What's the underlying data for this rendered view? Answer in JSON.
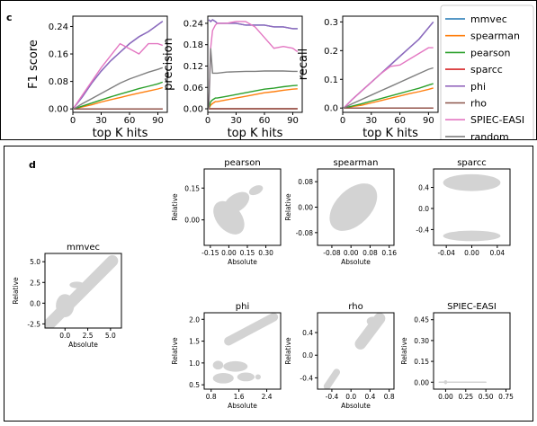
{
  "panels": {
    "c": {
      "letter": "c"
    },
    "d": {
      "letter": "d"
    }
  },
  "colors": {
    "mmvec": "#1f77b4",
    "spearman": "#ff7f0e",
    "pearson": "#2ca02c",
    "sparcc": "#d62728",
    "phi": "#9467bd",
    "rho": "#8c564b",
    "SPIEC-EASI": "#e377c2",
    "random": "#7f7f7f",
    "scatter": "#d3d3d3"
  },
  "chart_data": [
    {
      "id": "f1",
      "type": "line",
      "ylabel": "F1 score",
      "xlabel": "top K hits",
      "xlim": [
        0,
        100
      ],
      "ylim": [
        -0.01,
        0.27
      ],
      "xticks": [
        0,
        30,
        60,
        90
      ],
      "yticks": [
        0.0,
        0.08,
        0.16,
        0.24
      ],
      "ytick_labels": [
        "0.00",
        "0.08",
        "0.16",
        "0.24"
      ],
      "x": [
        1,
        10,
        20,
        30,
        40,
        50,
        60,
        70,
        80,
        90,
        95
      ],
      "series": [
        {
          "name": "mmvec",
          "values": [
            0.003,
            0.035,
            0.075,
            0.11,
            0.14,
            0.165,
            0.19,
            0.21,
            0.225,
            0.245,
            0.255
          ]
        },
        {
          "name": "spearman",
          "values": [
            0.0,
            0.006,
            0.012,
            0.02,
            0.027,
            0.033,
            0.04,
            0.046,
            0.052,
            0.058,
            0.062
          ]
        },
        {
          "name": "pearson",
          "values": [
            0.0,
            0.008,
            0.017,
            0.026,
            0.035,
            0.043,
            0.051,
            0.059,
            0.066,
            0.073,
            0.078
          ]
        },
        {
          "name": "sparcc",
          "values": [
            0.0,
            0.0,
            0.0,
            0.0,
            0.0,
            0.0,
            0.0,
            0.0,
            0.0,
            0.0,
            0.0
          ]
        },
        {
          "name": "phi",
          "values": [
            0.003,
            0.035,
            0.075,
            0.11,
            0.14,
            0.165,
            0.19,
            0.21,
            0.225,
            0.245,
            0.255
          ]
        },
        {
          "name": "rho",
          "values": [
            0.0,
            0.0,
            0.0,
            0.0,
            0.0,
            0.0,
            0.0,
            0.0,
            0.0,
            0.0,
            0.0
          ]
        },
        {
          "name": "SPIEC-EASI",
          "values": [
            0.003,
            0.04,
            0.08,
            0.12,
            0.155,
            0.19,
            0.175,
            0.16,
            0.19,
            0.19,
            0.185
          ]
        },
        {
          "name": "random",
          "values": [
            0.0,
            0.015,
            0.03,
            0.045,
            0.06,
            0.075,
            0.087,
            0.097,
            0.107,
            0.115,
            0.12
          ]
        }
      ]
    },
    {
      "id": "precision",
      "type": "line",
      "ylabel": "precision",
      "xlabel": "top K hits",
      "xlim": [
        0,
        100
      ],
      "ylim": [
        -0.01,
        0.26
      ],
      "xticks": [
        0,
        30,
        60,
        90
      ],
      "yticks": [
        0.0,
        0.06,
        0.12,
        0.18,
        0.24
      ],
      "ytick_labels": [
        "0.00",
        "0.06",
        "0.12",
        "0.18",
        "0.24"
      ],
      "x": [
        1,
        3,
        5,
        8,
        10,
        20,
        30,
        40,
        50,
        60,
        70,
        80,
        90,
        95
      ],
      "series": [
        {
          "name": "mmvec",
          "values": [
            0.25,
            0.245,
            0.25,
            0.245,
            0.24,
            0.24,
            0.24,
            0.235,
            0.235,
            0.235,
            0.23,
            0.23,
            0.225,
            0.225
          ]
        },
        {
          "name": "spearman",
          "values": [
            0.0,
            0.01,
            0.015,
            0.02,
            0.02,
            0.025,
            0.03,
            0.035,
            0.04,
            0.045,
            0.048,
            0.052,
            0.055,
            0.056
          ]
        },
        {
          "name": "pearson",
          "values": [
            0.0,
            0.02,
            0.025,
            0.03,
            0.03,
            0.035,
            0.04,
            0.045,
            0.05,
            0.055,
            0.058,
            0.062,
            0.065,
            0.066
          ]
        },
        {
          "name": "sparcc",
          "values": [
            0.0,
            0.0,
            0.0,
            0.0,
            0.0,
            0.0,
            0.0,
            0.0,
            0.0,
            0.0,
            0.0,
            0.0,
            0.0,
            0.0
          ]
        },
        {
          "name": "phi",
          "values": [
            0.25,
            0.245,
            0.25,
            0.245,
            0.24,
            0.24,
            0.24,
            0.235,
            0.235,
            0.235,
            0.23,
            0.23,
            0.225,
            0.225
          ]
        },
        {
          "name": "rho",
          "values": [
            0.0,
            0.0,
            0.0,
            0.0,
            0.0,
            0.0,
            0.0,
            0.0,
            0.0,
            0.0,
            0.0,
            0.0,
            0.0,
            0.0
          ]
        },
        {
          "name": "SPIEC-EASI",
          "values": [
            0.0,
            0.17,
            0.22,
            0.235,
            0.24,
            0.24,
            0.245,
            0.245,
            0.23,
            0.2,
            0.17,
            0.175,
            0.17,
            0.16
          ]
        },
        {
          "name": "random",
          "values": [
            0.0,
            0.17,
            0.1,
            0.1,
            0.1,
            0.103,
            0.104,
            0.105,
            0.105,
            0.106,
            0.106,
            0.106,
            0.105,
            0.105
          ]
        }
      ]
    },
    {
      "id": "recall",
      "type": "line",
      "ylabel": "recall",
      "xlabel": "top K hits",
      "xlim": [
        0,
        100
      ],
      "ylim": [
        -0.015,
        0.32
      ],
      "xticks": [
        0,
        30,
        60,
        90
      ],
      "yticks": [
        0.0,
        0.1,
        0.2,
        0.3
      ],
      "ytick_labels": [
        "0.0",
        "0.1",
        "0.2",
        "0.3"
      ],
      "x": [
        1,
        10,
        20,
        30,
        40,
        50,
        60,
        70,
        80,
        90,
        95
      ],
      "series": [
        {
          "name": "mmvec",
          "values": [
            0.0,
            0.03,
            0.06,
            0.09,
            0.12,
            0.15,
            0.18,
            0.21,
            0.24,
            0.28,
            0.3
          ]
        },
        {
          "name": "spearman",
          "values": [
            0.0,
            0.005,
            0.01,
            0.018,
            0.026,
            0.034,
            0.042,
            0.05,
            0.057,
            0.065,
            0.07
          ]
        },
        {
          "name": "pearson",
          "values": [
            0.0,
            0.007,
            0.015,
            0.024,
            0.033,
            0.042,
            0.051,
            0.06,
            0.069,
            0.08,
            0.085
          ]
        },
        {
          "name": "sparcc",
          "values": [
            0.0,
            0.0,
            0.0,
            0.0,
            0.0,
            0.0,
            0.0,
            0.0,
            0.0,
            0.0,
            0.0
          ]
        },
        {
          "name": "phi",
          "values": [
            0.0,
            0.03,
            0.06,
            0.09,
            0.12,
            0.15,
            0.18,
            0.21,
            0.24,
            0.28,
            0.3
          ]
        },
        {
          "name": "rho",
          "values": [
            0.0,
            0.0,
            0.0,
            0.0,
            0.0,
            0.0,
            0.0,
            0.0,
            0.0,
            0.0,
            0.0
          ]
        },
        {
          "name": "SPIEC-EASI",
          "values": [
            0.0,
            0.03,
            0.06,
            0.09,
            0.12,
            0.145,
            0.15,
            0.17,
            0.19,
            0.21,
            0.21
          ]
        },
        {
          "name": "random",
          "values": [
            0.0,
            0.015,
            0.03,
            0.045,
            0.06,
            0.075,
            0.09,
            0.105,
            0.12,
            0.135,
            0.14
          ]
        }
      ]
    },
    {
      "id": "mmvec-scatter",
      "type": "scatter",
      "title": "mmvec",
      "xlabel": "Absolute",
      "ylabel": "Relative",
      "xlim": [
        -2.2,
        6.2
      ],
      "ylim": [
        -3.0,
        6.0
      ],
      "xticks": [
        0.0,
        2.5,
        5.0
      ],
      "xtick_labels": [
        "0.0",
        "2.5",
        "5.0"
      ],
      "yticks": [
        -2.5,
        0.0,
        2.5,
        5.0
      ],
      "ytick_labels": [
        "-2.5",
        "0.0",
        "2.5",
        "5.0"
      ],
      "clusters": [
        {
          "shape": "band",
          "from": [
            -1.8,
            -2.6
          ],
          "to": [
            5.2,
            5.1
          ],
          "width": 0.7
        },
        {
          "shape": "ellipse",
          "cx": 0.0,
          "cy": -0.3,
          "rx": 1.0,
          "ry": 1.4
        },
        {
          "shape": "ellipse",
          "cx": 1.3,
          "cy": 2.2,
          "rx": 0.8,
          "ry": 0.4
        },
        {
          "shape": "ellipse",
          "cx": 2.6,
          "cy": 2.4,
          "rx": 0.6,
          "ry": 0.3
        },
        {
          "shape": "ellipse",
          "cx": 5.0,
          "cy": 5.0,
          "rx": 0.4,
          "ry": 0.5
        }
      ]
    },
    {
      "id": "pearson-scatter",
      "type": "scatter",
      "title": "pearson",
      "xlabel": "Absolute",
      "ylabel": "Relative",
      "xlim": [
        -0.2,
        0.42
      ],
      "ylim": [
        -0.12,
        0.24
      ],
      "xticks": [
        -0.15,
        0.0,
        0.15,
        0.3
      ],
      "xtick_labels": [
        "-0.15",
        "0.00",
        "0.15",
        "0.30"
      ],
      "yticks": [
        0.0,
        0.15
      ],
      "ytick_labels": [
        "0.00",
        "0.15"
      ],
      "clusters": [
        {
          "shape": "ellipse",
          "cx": 0.0,
          "cy": 0.01,
          "rx": 0.1,
          "ry": 0.09,
          "rot": -40
        },
        {
          "shape": "ellipse",
          "cx": 0.06,
          "cy": 0.08,
          "rx": 0.12,
          "ry": 0.04,
          "rot": -35
        },
        {
          "shape": "ellipse",
          "cx": 0.22,
          "cy": 0.14,
          "rx": 0.06,
          "ry": 0.02,
          "rot": -25
        }
      ]
    },
    {
      "id": "spearman-scatter",
      "type": "scatter",
      "title": "spearman",
      "xlabel": "Absolute",
      "ylabel": "Relative",
      "xlim": [
        -0.14,
        0.18
      ],
      "ylim": [
        -0.12,
        0.12
      ],
      "xticks": [
        -0.08,
        0.0,
        0.08,
        0.16
      ],
      "xtick_labels": [
        "-0.08",
        "0.00",
        "0.08",
        "0.16"
      ],
      "yticks": [
        -0.08,
        0.0,
        0.08
      ],
      "ytick_labels": [
        "-0.08",
        "0.00",
        "0.08"
      ],
      "clusters": [
        {
          "shape": "ellipse",
          "cx": 0.01,
          "cy": 0.0,
          "rx": 0.12,
          "ry": 0.055,
          "rot": -45
        }
      ]
    },
    {
      "id": "sparcc-scatter",
      "type": "scatter",
      "title": "sparcc",
      "xlabel": "",
      "ylabel": "",
      "xlim": [
        -0.06,
        0.06
      ],
      "ylim": [
        -0.7,
        0.75
      ],
      "xticks": [
        -0.04,
        0.0,
        0.04
      ],
      "xtick_labels": [
        "-0.04",
        "0.00",
        "0.04"
      ],
      "yticks": [
        -0.4,
        0.0,
        0.4
      ],
      "ytick_labels": [
        "-0.4",
        "0.0",
        "0.4"
      ],
      "clusters": [
        {
          "shape": "ellipse",
          "cx": 0.0,
          "cy": 0.49,
          "rx": 0.045,
          "ry": 0.16
        },
        {
          "shape": "ellipse",
          "cx": 0.0,
          "cy": -0.52,
          "rx": 0.045,
          "ry": 0.1
        }
      ]
    },
    {
      "id": "phi-scatter",
      "type": "scatter",
      "title": "phi",
      "xlabel": "Absolute",
      "ylabel": "Relative",
      "xlim": [
        0.6,
        2.8
      ],
      "ylim": [
        0.4,
        2.15
      ],
      "xticks": [
        0.8,
        1.6,
        2.4
      ],
      "xtick_labels": [
        "0.8",
        "1.6",
        "2.4"
      ],
      "yticks": [
        0.5,
        1.0,
        1.5,
        2.0
      ],
      "ytick_labels": [
        "0.5",
        "1.0",
        "1.5",
        "2.0"
      ],
      "clusters": [
        {
          "shape": "band",
          "from": [
            1.3,
            1.5
          ],
          "to": [
            2.6,
            2.05
          ],
          "width": 0.1
        },
        {
          "shape": "ellipse",
          "cx": 1.0,
          "cy": 0.95,
          "rx": 0.15,
          "ry": 0.1
        },
        {
          "shape": "ellipse",
          "cx": 1.5,
          "cy": 0.92,
          "rx": 0.35,
          "ry": 0.12
        },
        {
          "shape": "ellipse",
          "cx": 1.15,
          "cy": 0.65,
          "rx": 0.3,
          "ry": 0.12
        },
        {
          "shape": "ellipse",
          "cx": 1.8,
          "cy": 0.68,
          "rx": 0.25,
          "ry": 0.1
        },
        {
          "shape": "ellipse",
          "cx": 2.15,
          "cy": 0.68,
          "rx": 0.08,
          "ry": 0.06
        }
      ]
    },
    {
      "id": "rho-scatter",
      "type": "scatter",
      "title": "rho",
      "xlabel": "Absolute",
      "ylabel": "Relative",
      "xlim": [
        -0.7,
        0.9
      ],
      "ylim": [
        -0.6,
        0.75
      ],
      "xticks": [
        -0.4,
        0.0,
        0.4,
        0.8
      ],
      "xtick_labels": [
        "-0.4",
        "0.0",
        "0.4",
        "0.8"
      ],
      "yticks": [
        -0.4,
        0.0,
        0.4
      ],
      "ytick_labels": [
        "-0.4",
        "0.0",
        "0.4"
      ],
      "clusters": [
        {
          "shape": "band",
          "from": [
            -0.5,
            -0.55
          ],
          "to": [
            -0.3,
            -0.3
          ],
          "width": 0.06
        },
        {
          "shape": "band",
          "from": [
            0.2,
            0.2
          ],
          "to": [
            0.6,
            0.65
          ],
          "width": 0.1
        },
        {
          "shape": "ellipse",
          "cx": 0.45,
          "cy": 0.6,
          "rx": 0.12,
          "ry": 0.08
        }
      ]
    },
    {
      "id": "spiec-scatter",
      "type": "scatter",
      "title": "SPIEC-EASI",
      "xlabel": "",
      "ylabel": "Relative",
      "xlim": [
        -0.15,
        0.8
      ],
      "ylim": [
        -0.05,
        0.5
      ],
      "xticks": [
        0.0,
        0.25,
        0.5,
        0.75
      ],
      "xtick_labels": [
        "0.00",
        "0.25",
        "0.50",
        "0.75"
      ],
      "yticks": [
        0.0,
        0.15,
        0.3,
        0.45
      ],
      "ytick_labels": [
        "0.00",
        "0.15",
        "0.30",
        "0.45"
      ],
      "clusters": [
        {
          "shape": "ellipse",
          "cx": 0.0,
          "cy": 0.0,
          "rx": 0.02,
          "ry": 0.015
        },
        {
          "shape": "band",
          "from": [
            -0.08,
            0.0
          ],
          "to": [
            0.5,
            0.0
          ],
          "width": 0.003
        }
      ]
    }
  ]
}
